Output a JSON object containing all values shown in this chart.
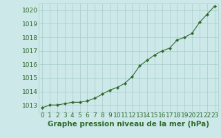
{
  "x": [
    0,
    1,
    2,
    3,
    4,
    5,
    6,
    7,
    8,
    9,
    10,
    11,
    12,
    13,
    14,
    15,
    16,
    17,
    18,
    19,
    20,
    21,
    22,
    23
  ],
  "y": [
    1012.8,
    1013.0,
    1013.0,
    1013.1,
    1013.2,
    1013.2,
    1013.3,
    1013.5,
    1013.8,
    1014.1,
    1014.3,
    1014.6,
    1015.1,
    1015.9,
    1016.3,
    1016.7,
    1017.0,
    1017.2,
    1017.8,
    1018.0,
    1018.3,
    1019.1,
    1019.7,
    1020.3
  ],
  "ylim": [
    1012.5,
    1020.5
  ],
  "yticks": [
    1013,
    1014,
    1015,
    1016,
    1017,
    1018,
    1019,
    1020
  ],
  "xlabel": "Graphe pression niveau de la mer (hPa)",
  "line_color": "#2d6a2d",
  "marker_color": "#2d6a2d",
  "bg_color": "#cce8e8",
  "grid_color": "#aacccc",
  "axes_bg": "#cce8e8",
  "tick_label_color": "#2d6a2d",
  "xlabel_color": "#2d6a2d",
  "xlabel_fontsize": 7.5,
  "tick_fontsize": 6.5
}
